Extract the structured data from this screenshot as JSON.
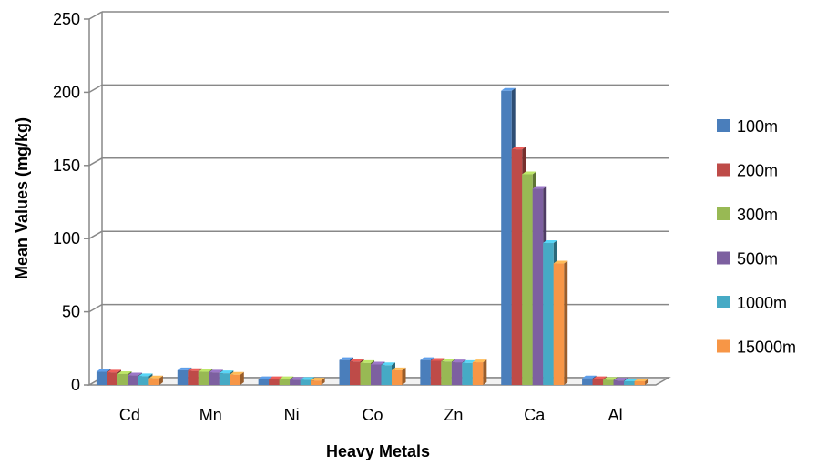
{
  "chart_data": {
    "type": "bar",
    "style": "3d-clustered-column",
    "xlabel": "Heavy Metals",
    "ylabel": "Mean Values (mg/kg)",
    "ylim": [
      0,
      250
    ],
    "yticks": [
      0,
      50,
      100,
      150,
      200,
      250
    ],
    "grid": true,
    "legend_position": "right",
    "categories": [
      "Cd",
      "Mn",
      "Ni",
      "Co",
      "Zn",
      "Ca",
      "Al"
    ],
    "series": [
      {
        "name": "100m",
        "color": "#4a7ebb",
        "values": [
          9,
          10,
          4,
          17,
          17,
          201,
          4.5
        ]
      },
      {
        "name": "200m",
        "color": "#be4b48",
        "values": [
          8.5,
          9.5,
          4,
          16,
          16.5,
          161,
          4
        ]
      },
      {
        "name": "300m",
        "color": "#98b954",
        "values": [
          7.5,
          9,
          4,
          15,
          16,
          144,
          3.5
        ]
      },
      {
        "name": "500m",
        "color": "#7d60a0",
        "values": [
          6.5,
          8.5,
          3.5,
          14,
          15.5,
          134,
          3
        ]
      },
      {
        "name": "1000m",
        "color": "#46aac5",
        "values": [
          6,
          8,
          3.5,
          13.5,
          15,
          97,
          2.5
        ]
      },
      {
        "name": "15000m",
        "color": "#f79646",
        "values": [
          4.5,
          7,
          3,
          10,
          15.5,
          83,
          2.5
        ]
      }
    ]
  }
}
